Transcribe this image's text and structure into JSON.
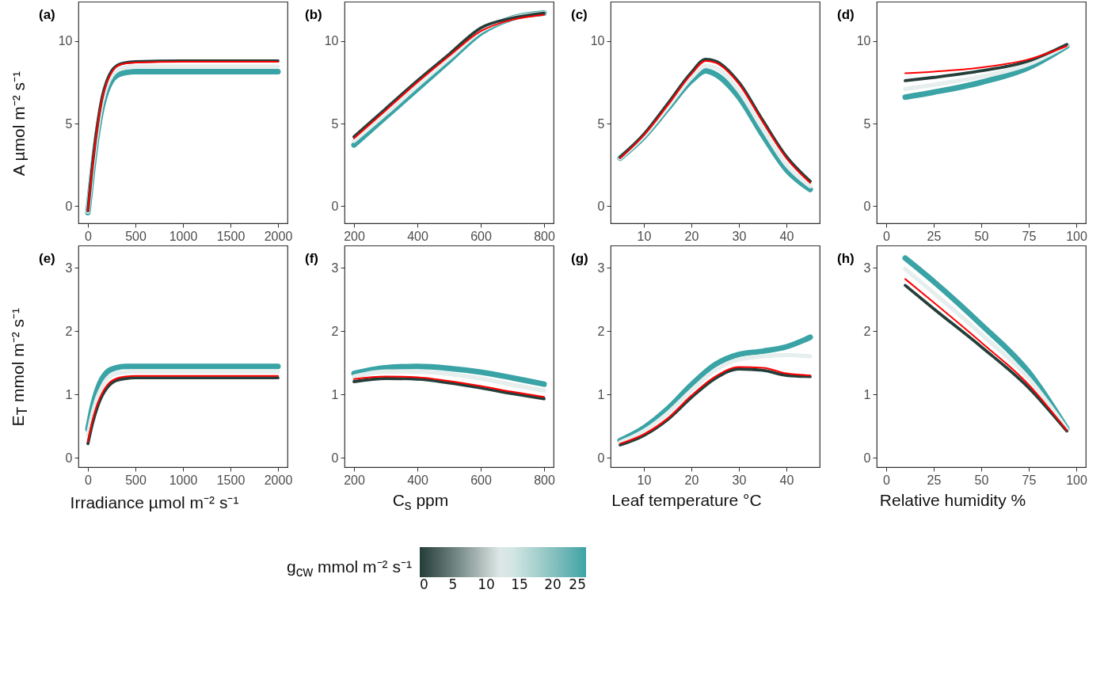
{
  "chart_data": [
    {
      "type": "line",
      "title": "(a)",
      "ylabel": "A µmol m⁻² s⁻¹",
      "x": [
        0,
        50,
        100,
        150,
        200,
        250,
        300,
        400,
        500,
        1000,
        2000
      ],
      "xlim": [
        -100,
        2100
      ],
      "xticks": [
        0,
        500,
        1000,
        1500,
        2000
      ],
      "ylim": [
        -1.05,
        12.4
      ],
      "yticks": [
        0,
        5,
        10
      ],
      "grid": false,
      "marker": "none",
      "line_style": "solid",
      "series": [
        {
          "color": "#3aa3a5",
          "values": [
            -0.4,
            2.2,
            4.4,
            6.0,
            7.0,
            7.6,
            7.9,
            8.1,
            8.15,
            8.15,
            8.15
          ]
        },
        {
          "color": "#e6efee",
          "values": [
            -0.35,
            2.4,
            4.6,
            6.3,
            7.3,
            7.9,
            8.2,
            8.4,
            8.45,
            8.45,
            8.45
          ]
        },
        {
          "color": "#243e3a",
          "values": [
            -0.3,
            2.6,
            4.9,
            6.6,
            7.6,
            8.2,
            8.5,
            8.7,
            8.75,
            8.8,
            8.8
          ]
        },
        {
          "color": "#ff0000",
          "values": [
            -0.3,
            2.5,
            4.8,
            6.5,
            7.5,
            8.1,
            8.45,
            8.65,
            8.7,
            8.75,
            8.75
          ]
        }
      ]
    },
    {
      "type": "line",
      "title": "(b)",
      "x": [
        200,
        300,
        400,
        500,
        600,
        700,
        800
      ],
      "xlim": [
        170,
        830
      ],
      "xticks": [
        200,
        400,
        600,
        800
      ],
      "ylim": [
        -1.05,
        12.4
      ],
      "yticks": [
        0,
        5,
        10
      ],
      "grid": false,
      "marker": "none",
      "line_style": "solid",
      "series": [
        {
          "color": "#3aa3a5",
          "values": [
            3.7,
            5.4,
            7.1,
            8.8,
            10.5,
            11.4,
            11.7
          ]
        },
        {
          "color": "#e6efee",
          "values": [
            3.95,
            5.6,
            7.3,
            8.95,
            10.6,
            11.4,
            11.7
          ]
        },
        {
          "color": "#243e3a",
          "values": [
            4.2,
            5.9,
            7.6,
            9.2,
            10.8,
            11.4,
            11.7
          ]
        },
        {
          "color": "#ff0000",
          "values": [
            4.1,
            5.8,
            7.5,
            9.1,
            10.6,
            11.3,
            11.6
          ]
        }
      ]
    },
    {
      "type": "line",
      "title": "(c)",
      "x": [
        5,
        10,
        15,
        20,
        23,
        25,
        30,
        35,
        40,
        45
      ],
      "xlim": [
        3,
        47
      ],
      "xticks": [
        10,
        20,
        30,
        40
      ],
      "ylim": [
        -1.05,
        12.4
      ],
      "yticks": [
        0,
        5,
        10
      ],
      "grid": false,
      "marker": "none",
      "line_style": "solid",
      "series": [
        {
          "color": "#3aa3a5",
          "values": [
            2.9,
            4.2,
            5.9,
            7.6,
            8.2,
            8.0,
            6.6,
            4.3,
            2.2,
            1.0
          ]
        },
        {
          "color": "#e6efee",
          "values": [
            2.9,
            4.25,
            6.0,
            7.8,
            8.5,
            8.4,
            7.0,
            4.7,
            2.5,
            1.2
          ]
        },
        {
          "color": "#243e3a",
          "values": [
            2.95,
            4.35,
            6.2,
            8.1,
            8.9,
            8.8,
            7.5,
            5.2,
            3.0,
            1.5
          ]
        },
        {
          "color": "#ff0000",
          "values": [
            2.9,
            4.3,
            6.1,
            8.0,
            8.8,
            8.7,
            7.4,
            5.1,
            2.9,
            1.4
          ]
        }
      ]
    },
    {
      "type": "line",
      "title": "(d)",
      "x": [
        10,
        25,
        50,
        75,
        95
      ],
      "xlim": [
        -5,
        105
      ],
      "xticks": [
        0,
        25,
        50,
        75,
        100
      ],
      "ylim": [
        -1.05,
        12.4
      ],
      "yticks": [
        0,
        5,
        10
      ],
      "grid": false,
      "marker": "none",
      "line_style": "solid",
      "series": [
        {
          "color": "#3aa3a5",
          "values": [
            6.6,
            6.9,
            7.5,
            8.4,
            9.7
          ]
        },
        {
          "color": "#e6efee",
          "values": [
            7.1,
            7.35,
            7.85,
            8.6,
            9.75
          ]
        },
        {
          "color": "#243e3a",
          "values": [
            7.6,
            7.8,
            8.2,
            8.8,
            9.8
          ]
        },
        {
          "color": "#ff0000",
          "values": [
            8.05,
            8.15,
            8.4,
            8.9,
            9.7
          ]
        }
      ]
    },
    {
      "type": "line",
      "title": "(e)",
      "ylabel": "E$_{T}$ mmol m⁻² s⁻¹",
      "xlabel": "Irradiance µmol m⁻² s⁻¹",
      "x": [
        0,
        50,
        100,
        150,
        200,
        300,
        400,
        500,
        1000,
        2000
      ],
      "xlim": [
        -100,
        2100
      ],
      "xticks": [
        0,
        500,
        1000,
        1500,
        2000
      ],
      "ylim": [
        -0.15,
        3.35
      ],
      "yticks": [
        0,
        1,
        2,
        3
      ],
      "grid": false,
      "marker": "none",
      "line_style": "solid",
      "series": [
        {
          "color": "#3aa3a5",
          "values": [
            0.45,
            0.82,
            1.08,
            1.25,
            1.35,
            1.42,
            1.44,
            1.44,
            1.44,
            1.44
          ]
        },
        {
          "color": "#e6efee",
          "values": [
            0.35,
            0.7,
            0.95,
            1.12,
            1.24,
            1.33,
            1.35,
            1.36,
            1.36,
            1.36
          ]
        },
        {
          "color": "#243e3a",
          "values": [
            0.22,
            0.55,
            0.8,
            0.98,
            1.1,
            1.22,
            1.25,
            1.26,
            1.26,
            1.26
          ]
        },
        {
          "color": "#ff0000",
          "values": [
            0.25,
            0.6,
            0.85,
            1.02,
            1.14,
            1.25,
            1.28,
            1.29,
            1.29,
            1.29
          ]
        }
      ]
    },
    {
      "type": "line",
      "title": "(f)",
      "xlabel": "C$_{s}$ ppm",
      "x": [
        200,
        300,
        400,
        500,
        600,
        700,
        800
      ],
      "xlim": [
        170,
        830
      ],
      "xticks": [
        200,
        400,
        600,
        800
      ],
      "ylim": [
        -0.15,
        3.35
      ],
      "yticks": [
        0,
        1,
        2,
        3
      ],
      "grid": false,
      "marker": "none",
      "line_style": "solid",
      "series": [
        {
          "color": "#3aa3a5",
          "values": [
            1.33,
            1.42,
            1.44,
            1.41,
            1.35,
            1.26,
            1.16
          ]
        },
        {
          "color": "#e6efee",
          "values": [
            1.28,
            1.36,
            1.36,
            1.32,
            1.25,
            1.15,
            1.06
          ]
        },
        {
          "color": "#243e3a",
          "values": [
            1.2,
            1.25,
            1.24,
            1.18,
            1.1,
            1.01,
            0.93
          ]
        },
        {
          "color": "#ff0000",
          "values": [
            1.24,
            1.28,
            1.27,
            1.21,
            1.13,
            1.04,
            0.96
          ]
        }
      ]
    },
    {
      "type": "line",
      "title": "(g)",
      "xlabel": "Leaf temperature °C",
      "x": [
        5,
        10,
        15,
        20,
        25,
        30,
        35,
        40,
        45
      ],
      "xlim": [
        3,
        47
      ],
      "xticks": [
        10,
        20,
        30,
        40
      ],
      "ylim": [
        -0.15,
        3.35
      ],
      "yticks": [
        0,
        1,
        2,
        3
      ],
      "grid": false,
      "marker": "none",
      "line_style": "solid",
      "series": [
        {
          "color": "#3aa3a5",
          "values": [
            0.27,
            0.47,
            0.77,
            1.15,
            1.47,
            1.63,
            1.68,
            1.75,
            1.9
          ]
        },
        {
          "color": "#e6efee",
          "values": [
            0.24,
            0.42,
            0.7,
            1.06,
            1.38,
            1.55,
            1.6,
            1.62,
            1.6
          ]
        },
        {
          "color": "#243e3a",
          "values": [
            0.2,
            0.35,
            0.6,
            0.95,
            1.25,
            1.4,
            1.38,
            1.3,
            1.28
          ]
        },
        {
          "color": "#ff0000",
          "values": [
            0.22,
            0.37,
            0.62,
            0.98,
            1.28,
            1.43,
            1.42,
            1.33,
            1.3
          ]
        }
      ]
    },
    {
      "type": "line",
      "title": "(h)",
      "xlabel": "Relative humidity %",
      "x": [
        10,
        25,
        50,
        75,
        95
      ],
      "xlim": [
        -5,
        105
      ],
      "xticks": [
        0,
        25,
        50,
        75,
        100
      ],
      "ylim": [
        -0.15,
        3.35
      ],
      "yticks": [
        0,
        1,
        2,
        3
      ],
      "grid": false,
      "marker": "none",
      "line_style": "solid",
      "clabel": "g$_{cw}$ mmol m⁻² s⁻¹",
      "clim": [
        0,
        25
      ],
      "cticks": [
        0,
        5,
        10,
        15,
        20,
        25
      ],
      "series": [
        {
          "color": "#3aa3a5",
          "values": [
            3.15,
            2.78,
            2.1,
            1.35,
            0.46
          ]
        },
        {
          "color": "#e6efee",
          "values": [
            2.98,
            2.6,
            1.95,
            1.25,
            0.45
          ]
        },
        {
          "color": "#243e3a",
          "values": [
            2.72,
            2.35,
            1.75,
            1.1,
            0.42
          ]
        },
        {
          "color": "#ff0000",
          "values": [
            2.82,
            2.45,
            1.82,
            1.15,
            0.43
          ]
        }
      ]
    }
  ]
}
